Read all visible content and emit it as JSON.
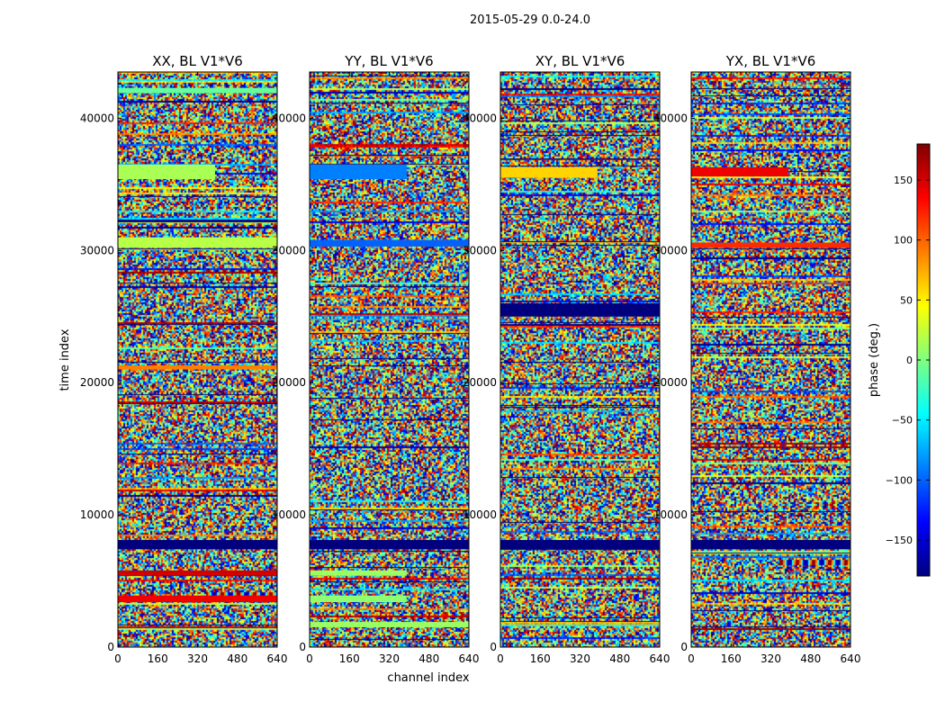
{
  "figure": {
    "suptitle": "2015-05-29 0.0-24.0",
    "xlabel": "channel index",
    "ylabel": "time index"
  },
  "colorbar": {
    "label": "phase (deg.)",
    "ticks": [
      150,
      100,
      50,
      0,
      -50,
      -100,
      -150
    ],
    "tick_labels": [
      "150",
      "100",
      "50",
      "0",
      "−50",
      "−100",
      "−150"
    ],
    "range": [
      -180,
      180
    ],
    "colormap": "jet",
    "colormap_stops": [
      "#00007f",
      "#0000ff",
      "#007fff",
      "#00ffff",
      "#7fff7f",
      "#ffff00",
      "#ff7f00",
      "#ff0000",
      "#7f0000"
    ]
  },
  "chart_data": [
    {
      "type": "heatmap",
      "title": "XX, BL V1*V6",
      "xlim": [
        0,
        640
      ],
      "ylim": [
        0,
        43500
      ],
      "xticks": [
        0,
        160,
        320,
        480,
        640
      ],
      "yticks": [
        0,
        10000,
        20000,
        30000,
        40000
      ],
      "value": "phase (deg.)",
      "uniform_bands": [
        {
          "t": [
            7400,
            8100
          ],
          "ch": [
            0,
            640
          ],
          "phase": -180
        },
        {
          "t": [
            35400,
            36500
          ],
          "ch": [
            0,
            390
          ],
          "phase": 15
        },
        {
          "t": [
            30200,
            31000
          ],
          "ch": [
            0,
            640
          ],
          "phase": 20
        },
        {
          "t": [
            5400,
            5800
          ],
          "ch": [
            0,
            640
          ],
          "phase": 150
        },
        {
          "t": [
            3400,
            3900
          ],
          "ch": [
            0,
            640
          ],
          "phase": 140
        },
        {
          "t": [
            21000,
            21300
          ],
          "ch": [
            0,
            640
          ],
          "phase": 90
        },
        {
          "t": [
            41900,
            42300
          ],
          "ch": [
            0,
            640
          ],
          "phase": -10
        }
      ]
    },
    {
      "type": "heatmap",
      "title": "YY, BL V1*V6",
      "xlim": [
        0,
        640
      ],
      "ylim": [
        0,
        43500
      ],
      "xticks": [
        0,
        160,
        320,
        480,
        640
      ],
      "yticks": [
        0,
        10000,
        20000,
        30000,
        40000
      ],
      "value": "phase (deg.)",
      "uniform_bands": [
        {
          "t": [
            7400,
            8100
          ],
          "ch": [
            0,
            640
          ],
          "phase": -180
        },
        {
          "t": [
            35400,
            36500
          ],
          "ch": [
            0,
            390
          ],
          "phase": -90
        },
        {
          "t": [
            30300,
            30800
          ],
          "ch": [
            0,
            640
          ],
          "phase": -100
        },
        {
          "t": [
            5400,
            5800
          ],
          "ch": [
            0,
            390
          ],
          "phase": 10
        },
        {
          "t": [
            3400,
            3900
          ],
          "ch": [
            0,
            390
          ],
          "phase": 5
        },
        {
          "t": [
            1500,
            1900
          ],
          "ch": [
            0,
            640
          ],
          "phase": 10
        }
      ]
    },
    {
      "type": "heatmap",
      "title": "XY, BL V1*V6",
      "xlim": [
        0,
        640
      ],
      "ylim": [
        0,
        43500
      ],
      "xticks": [
        0,
        160,
        320,
        480,
        640
      ],
      "yticks": [
        0,
        10000,
        20000,
        30000,
        40000
      ],
      "value": "phase (deg.)",
      "uniform_bands": [
        {
          "t": [
            7400,
            8100
          ],
          "ch": [
            0,
            640
          ],
          "phase": -180
        },
        {
          "t": [
            35500,
            36300
          ],
          "ch": [
            0,
            390
          ],
          "phase": 60
        },
        {
          "t": [
            26000,
            25000
          ],
          "ch": [
            0,
            640
          ],
          "phase": -180
        }
      ]
    },
    {
      "type": "heatmap",
      "title": "YX, BL V1*V6",
      "xlim": [
        0,
        640
      ],
      "ylim": [
        0,
        43500
      ],
      "xticks": [
        0,
        160,
        320,
        480,
        640
      ],
      "yticks": [
        0,
        10000,
        20000,
        30000,
        40000
      ],
      "value": "phase (deg.)",
      "uniform_bands": [
        {
          "t": [
            7400,
            8100
          ],
          "ch": [
            0,
            640
          ],
          "phase": -180
        },
        {
          "t": [
            35600,
            36300
          ],
          "ch": [
            0,
            390
          ],
          "phase": 140
        },
        {
          "t": [
            30200,
            30600
          ],
          "ch": [
            0,
            640
          ],
          "phase": 120
        }
      ]
    }
  ]
}
